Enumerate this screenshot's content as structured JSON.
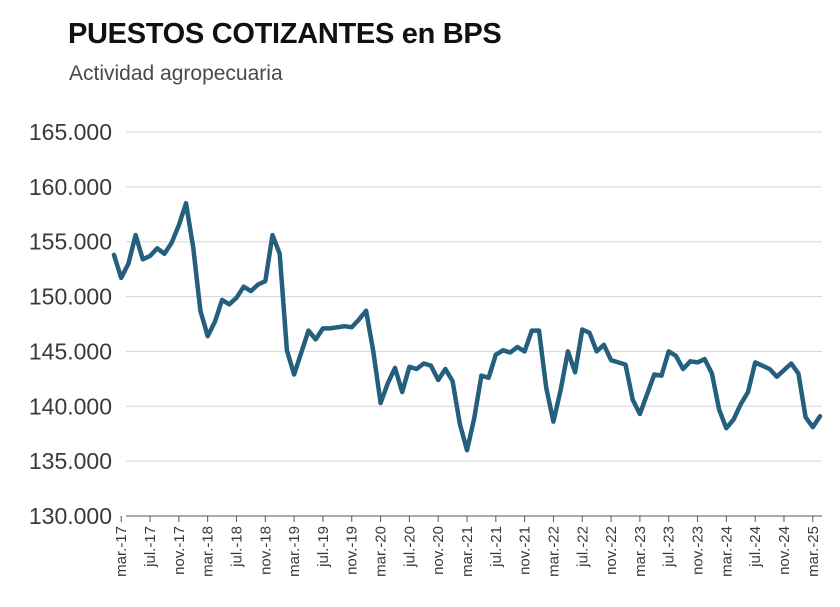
{
  "chart_data": {
    "type": "line",
    "title": "PUESTOS COTIZANTES en BPS",
    "subtitle": "Actividad agropecuaria",
    "xlabel": "",
    "ylabel": "",
    "ylim": [
      130000,
      165000
    ],
    "yticks": [
      130000,
      135000,
      140000,
      145000,
      150000,
      155000,
      160000,
      165000
    ],
    "ytick_labels": [
      "130.000",
      "135.000",
      "140.000",
      "145.000",
      "150.000",
      "155.000",
      "160.000",
      "165.000"
    ],
    "grid": true,
    "series_color": "#245f7e",
    "x_tick_labels": [
      "mar.-17",
      "jul.-17",
      "nov.-17",
      "mar.-18",
      "jul.-18",
      "nov.-18",
      "mar.-19",
      "jul.-19",
      "nov.-19",
      "mar.-20",
      "jul.-20",
      "nov.-20",
      "mar.-21",
      "jul.-21",
      "nov.-21",
      "mar.-22",
      "jul.-22",
      "nov.-22",
      "mar.-23",
      "jul.-23",
      "nov.-23",
      "mar.-24",
      "jul.-24",
      "nov.-24",
      "mar.-25"
    ],
    "series": [
      {
        "name": "Puestos cotizantes - Actividad agropecuaria",
        "start": "feb.-17",
        "values": [
          153800,
          151700,
          153000,
          155600,
          153400,
          153700,
          154400,
          153900,
          154900,
          156500,
          158500,
          154500,
          148700,
          146400,
          147700,
          149700,
          149300,
          149900,
          150900,
          150500,
          151100,
          151400,
          155600,
          153900,
          145100,
          142900,
          144900,
          146900,
          146100,
          147100,
          147100,
          147200,
          147300,
          147200,
          147900,
          148700,
          145000,
          140300,
          142100,
          143500,
          141300,
          143600,
          143400,
          143900,
          143700,
          142400,
          143400,
          142300,
          138400,
          136000,
          138900,
          142800,
          142600,
          144700,
          145100,
          144900,
          145400,
          145000,
          146900,
          146900,
          141700,
          138600,
          141500,
          145000,
          143100,
          147000,
          146700,
          145000,
          145600,
          144200,
          144000,
          143800,
          140600,
          139300,
          141100,
          142900,
          142800,
          145000,
          144600,
          143400,
          144100,
          144000,
          144300,
          143000,
          139700,
          138000,
          138800,
          140200,
          141300,
          144000,
          143700,
          143400,
          142700,
          143300,
          143900,
          143000,
          139000,
          138100,
          139100
        ]
      }
    ]
  }
}
